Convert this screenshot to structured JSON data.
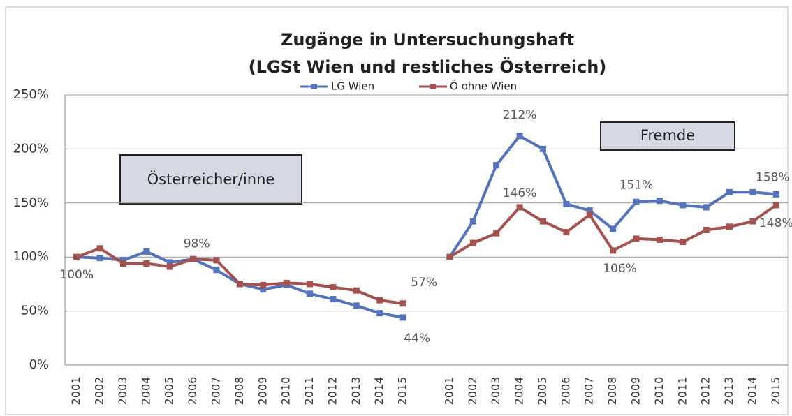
{
  "chart_data": {
    "type": "line",
    "title": "Zugänge in Untersuchungshaft",
    "subtitle": "(LGSt Wien und restliches Österreich)",
    "annotations": [
      "Österreicher/inne",
      "Fremde"
    ],
    "categories": [
      "2001",
      "2002",
      "2003",
      "2004",
      "2005",
      "2006",
      "2007",
      "2008",
      "2009",
      "2010",
      "2011",
      "2012",
      "2013",
      "2014",
      "2015",
      null,
      "2001",
      "2002",
      "2003",
      "2004",
      "2005",
      "2006",
      "2007",
      "2008",
      "2009",
      "2010",
      "2011",
      "2012",
      "2013",
      "2014",
      "2015"
    ],
    "series": [
      {
        "name": "LG Wien",
        "color": "#5473bb",
        "values": [
          100,
          99,
          97,
          105,
          95,
          98,
          88,
          75,
          70,
          74,
          66,
          61,
          55,
          48,
          44,
          null,
          100,
          133,
          185,
          212,
          200,
          149,
          143,
          126,
          151,
          152,
          148,
          146,
          160,
          160,
          158
        ],
        "value_labels": [
          "100%",
          null,
          null,
          null,
          null,
          null,
          null,
          null,
          null,
          null,
          null,
          null,
          null,
          null,
          "44%",
          null,
          null,
          null,
          null,
          "212%",
          null,
          null,
          null,
          null,
          "151%",
          null,
          null,
          null,
          null,
          null,
          "158%"
        ]
      },
      {
        "name": "Ö ohne Wien",
        "color": "#a3524f",
        "values": [
          100,
          108,
          94,
          94,
          91,
          98,
          97,
          75,
          74,
          76,
          75,
          72,
          69,
          60,
          57,
          null,
          100,
          113,
          122,
          146,
          133,
          123,
          139,
          106,
          117,
          116,
          114,
          125,
          128,
          133,
          148
        ],
        "value_labels": [
          null,
          null,
          null,
          null,
          null,
          "98%",
          null,
          null,
          null,
          null,
          null,
          null,
          null,
          null,
          "57%",
          null,
          null,
          null,
          null,
          "146%",
          null,
          null,
          null,
          "106%",
          null,
          null,
          null,
          null,
          null,
          null,
          "148%"
        ]
      }
    ],
    "ylim": [
      0,
      250
    ],
    "yticks": [
      {
        "value": 0,
        "label": "0%"
      },
      {
        "value": 50,
        "label": "50%"
      },
      {
        "value": 100,
        "label": "100%"
      },
      {
        "value": 150,
        "label": "150%"
      },
      {
        "value": 200,
        "label": "200%"
      },
      {
        "value": 250,
        "label": "250%"
      }
    ],
    "grid": true,
    "legend": "top"
  }
}
